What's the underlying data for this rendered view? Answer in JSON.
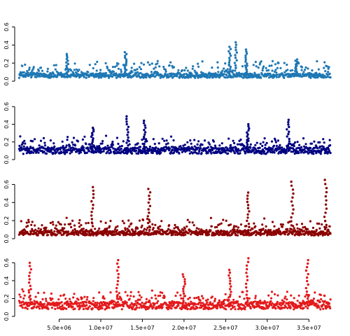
{
  "chart_data": [
    {
      "type": "scatter",
      "panel": 1,
      "color": "#1F78B4",
      "xlim": [
        0,
        38000000
      ],
      "ylim": [
        0,
        0.65
      ],
      "y_ticks": [
        0.0,
        0.2,
        0.4,
        0.6
      ],
      "y_tick_labels": [
        "0.0",
        "0.2",
        "0.4",
        "0.6"
      ],
      "x_ticks_shown": false,
      "baseline": 0.06,
      "noise": 0.04,
      "peaks": [
        {
          "x": 6000000,
          "y": 0.3
        },
        {
          "x": 13000000,
          "y": 0.32
        },
        {
          "x": 25500000,
          "y": 0.38
        },
        {
          "x": 26200000,
          "y": 0.43
        },
        {
          "x": 27500000,
          "y": 0.35
        },
        {
          "x": 33500000,
          "y": 0.24
        }
      ]
    },
    {
      "type": "scatter",
      "panel": 2,
      "color": "#000080",
      "xlim": [
        0,
        38000000
      ],
      "ylim": [
        0,
        0.65
      ],
      "y_ticks": [
        0.0,
        0.2,
        0.4,
        0.6
      ],
      "y_tick_labels": [
        "0.0",
        "0.2",
        "0.4",
        "0.6"
      ],
      "x_ticks_shown": false,
      "baseline": 0.1,
      "noise": 0.06,
      "peaks": [
        {
          "x": 9000000,
          "y": 0.36
        },
        {
          "x": 13200000,
          "y": 0.49
        },
        {
          "x": 15300000,
          "y": 0.44
        },
        {
          "x": 27700000,
          "y": 0.4
        },
        {
          "x": 32500000,
          "y": 0.45
        }
      ]
    },
    {
      "type": "scatter",
      "panel": 3,
      "color": "#8B0000",
      "xlim": [
        0,
        38000000
      ],
      "ylim": [
        0,
        0.65
      ],
      "y_ticks": [
        0.0,
        0.2,
        0.4,
        0.6
      ],
      "y_tick_labels": [
        "0.0",
        "0.2",
        "0.4",
        "0.6"
      ],
      "x_ticks_shown": false,
      "baseline": 0.06,
      "noise": 0.04,
      "peaks": [
        {
          "x": 9000000,
          "y": 0.57
        },
        {
          "x": 15800000,
          "y": 0.55
        },
        {
          "x": 27700000,
          "y": 0.51
        },
        {
          "x": 33000000,
          "y": 0.63
        },
        {
          "x": 37000000,
          "y": 0.65
        }
      ]
    },
    {
      "type": "scatter",
      "panel": 4,
      "color": "#E31A1C",
      "xlim": [
        0,
        38000000
      ],
      "ylim": [
        0,
        0.65
      ],
      "y_ticks": [
        0.0,
        0.2,
        0.4,
        0.6
      ],
      "y_tick_labels": [
        "0.0",
        "0.2",
        "0.4",
        "0.6"
      ],
      "x_ticks_shown": true,
      "x_ticks": [
        5000000,
        10000000,
        15000000,
        20000000,
        25000000,
        30000000,
        35000000
      ],
      "x_tick_labels": [
        "5.0e+06",
        "1.0e+07",
        "1.5e+07",
        "2.0e+07",
        "2.5e+07",
        "3.0e+07",
        "3.5e+07"
      ],
      "baseline": 0.12,
      "noise": 0.07,
      "peaks": [
        {
          "x": 1500000,
          "y": 0.6
        },
        {
          "x": 12000000,
          "y": 0.63
        },
        {
          "x": 20000000,
          "y": 0.47
        },
        {
          "x": 25500000,
          "y": 0.52
        },
        {
          "x": 27600000,
          "y": 0.65
        },
        {
          "x": 34800000,
          "y": 0.63
        }
      ]
    }
  ]
}
